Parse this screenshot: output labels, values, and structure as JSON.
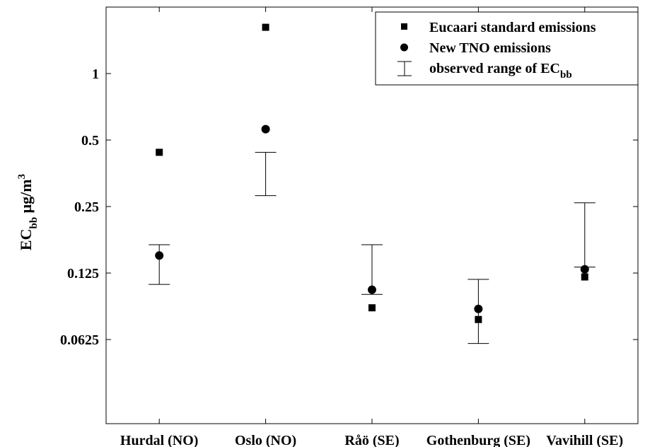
{
  "chart_data": {
    "type": "scatter",
    "y_scale": "log2",
    "ylim": [
      0.026,
      2.0
    ],
    "ylabel": {
      "main": "EC",
      "sub": "bb",
      "unit": "μg/m",
      "sup": "3"
    },
    "categories": [
      "Hurdal (NO)",
      "Oslo (NO)",
      "Råö (SE)",
      "Gothenburg (SE)",
      "Vavihill (SE)"
    ],
    "y_ticks": [
      0.0625,
      0.125,
      0.25,
      0.5,
      1
    ],
    "y_tick_labels": [
      "0.0625",
      "0.125",
      "0.25",
      "0.5",
      "1"
    ],
    "series": [
      {
        "name": "Eucaari standard emissions",
        "marker": "square",
        "values": [
          0.44,
          1.62,
          0.087,
          0.077,
          0.12
        ]
      },
      {
        "name": "New TNO emissions",
        "marker": "circle",
        "values": [
          0.15,
          0.56,
          0.105,
          0.086,
          0.13
        ]
      }
    ],
    "ranges": {
      "name_main": "observed range of EC",
      "name_sub": "bb",
      "low": [
        0.111,
        0.28,
        0.1,
        0.06,
        0.133
      ],
      "high": [
        0.168,
        0.44,
        0.168,
        0.117,
        0.26
      ]
    },
    "legend_position": "top-right",
    "grid": false
  }
}
